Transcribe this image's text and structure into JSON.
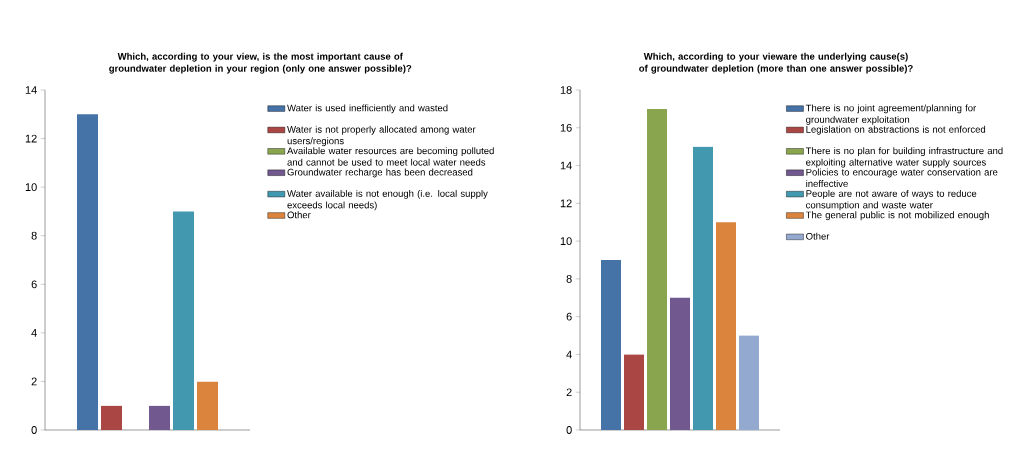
{
  "chart_data": [
    {
      "type": "bar",
      "title": "Which, according to your view, is the most important cause of groundwater depletion in your region (only one answer possible)?",
      "categories": [
        null
      ],
      "ylim": [
        0,
        14
      ],
      "yticks": [
        0,
        2,
        4,
        6,
        8,
        10,
        12,
        14
      ],
      "legend": "right",
      "series": [
        {
          "name": "Water is used inefficiently and wasted",
          "color": "#4572a7",
          "values": [
            13
          ]
        },
        {
          "name": "Water is not properly allocated among water users/regions",
          "color": "#aa4643",
          "values": [
            1
          ]
        },
        {
          "name": "Available water resources are becoming polluted and cannot be used to meet local water needs",
          "color": "#89a54e",
          "values": [
            0
          ]
        },
        {
          "name": "Groundwater recharge has been decreased",
          "color": "#71588f",
          "values": [
            1
          ]
        },
        {
          "name": "Water available is not enough (i.e. local supply exceeds local needs)",
          "color": "#4198af",
          "values": [
            9
          ]
        },
        {
          "name": "Other",
          "color": "#db843d",
          "values": [
            2
          ]
        }
      ]
    },
    {
      "type": "bar",
      "title": "Which, according to your vieware the underlying cause(s) of groundwater depletion (more than one answer possible)?",
      "categories": [
        null
      ],
      "ylim": [
        0,
        18
      ],
      "yticks": [
        0,
        2,
        4,
        6,
        8,
        10,
        12,
        14,
        16,
        18
      ],
      "legend": "right",
      "series": [
        {
          "name": "There is no joint agreement/planning for groundwater exploitation",
          "color": "#4572a7",
          "values": [
            9
          ]
        },
        {
          "name": "Legislation on abstractions is not enforced",
          "color": "#aa4643",
          "values": [
            4
          ]
        },
        {
          "name": "There is no plan for building infrastructure and exploiting alternative water supply sources",
          "color": "#89a54e",
          "values": [
            17
          ]
        },
        {
          "name": "Policies to encourage water conservation are ineffective",
          "color": "#71588f",
          "values": [
            7
          ]
        },
        {
          "name": "People are not aware of ways to reduce consumption and waste water",
          "color": "#4198af",
          "values": [
            15
          ]
        },
        {
          "name": "The general public is not mobilized enough",
          "color": "#db843d",
          "values": [
            11
          ]
        },
        {
          "name": "Other",
          "color": "#93a9cf",
          "values": [
            5
          ]
        }
      ]
    }
  ]
}
